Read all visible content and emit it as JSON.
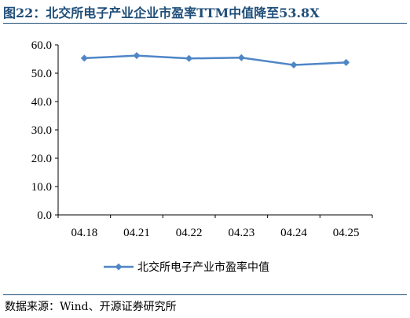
{
  "figure": {
    "title": "图22：北交所电子产业企业市盈率TTM中值降至53.8X",
    "source": "数据来源：Wind、开源证券研究所"
  },
  "chart_data": {
    "type": "line",
    "categories": [
      "04.18",
      "04.21",
      "04.22",
      "04.23",
      "04.24",
      "04.25"
    ],
    "series": [
      {
        "name": "北交所电子产业市盈率中值",
        "values": [
          55.3,
          56.2,
          55.2,
          55.5,
          52.9,
          53.8
        ],
        "color": "#4f86c6",
        "marker": "diamond"
      }
    ],
    "y_ticks": [
      "0.0",
      "10.0",
      "20.0",
      "30.0",
      "40.0",
      "50.0",
      "60.0"
    ],
    "ylim": [
      0,
      60
    ],
    "grid": false,
    "legend_position": "bottom"
  }
}
